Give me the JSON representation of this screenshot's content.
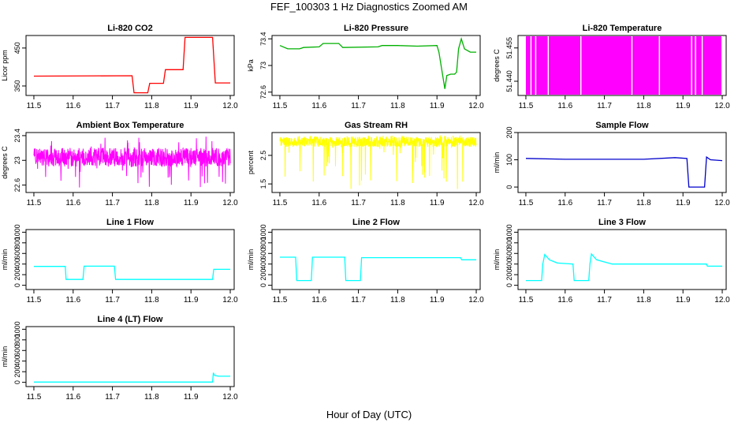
{
  "figure": {
    "title": "FEF_100303  1 Hz Diagnostics Zoomed AM",
    "xlabel": "Hour of Day (UTC)"
  },
  "chart_data": [
    {
      "type": "line",
      "title": "Li-820 CO2",
      "ylabel": "Licor ppm",
      "color": "#ff0000",
      "xlim": [
        11.48,
        12.01
      ],
      "ylim": [
        325,
        483
      ],
      "yticks": [
        350,
        450
      ],
      "xticks": [
        11.5,
        11.6,
        11.7,
        11.8,
        11.9,
        12.0
      ],
      "series": [
        {
          "x": [
            11.5,
            11.75,
            11.755,
            11.79,
            11.795,
            11.83,
            11.835,
            11.88,
            11.885,
            11.955,
            11.962,
            12.0
          ],
          "y": [
            376,
            377,
            332,
            332,
            357,
            357,
            393,
            393,
            478,
            478,
            358,
            358
          ]
        }
      ]
    },
    {
      "type": "line",
      "title": "Li-820 Pressure",
      "ylabel": "kPa",
      "color": "#00b000",
      "xlim": [
        11.48,
        12.01
      ],
      "ylim": [
        72.55,
        73.45
      ],
      "yticks": [
        72.6,
        73.0,
        73.4
      ],
      "xticks": [
        11.5,
        11.6,
        11.7,
        11.8,
        11.9,
        12.0
      ],
      "series": [
        {
          "x": [
            11.5,
            11.52,
            11.55,
            11.56,
            11.6,
            11.61,
            11.65,
            11.66,
            11.75,
            11.76,
            11.8,
            11.85,
            11.9,
            11.905,
            11.92,
            11.925,
            11.935,
            11.945,
            11.95,
            11.955,
            11.962,
            11.97,
            11.985,
            12.0
          ],
          "y": [
            73.3,
            73.25,
            73.25,
            73.27,
            73.28,
            73.33,
            73.33,
            73.27,
            73.28,
            73.3,
            73.3,
            73.29,
            73.3,
            73.2,
            72.65,
            72.85,
            72.87,
            72.87,
            72.9,
            73.25,
            73.4,
            73.25,
            73.2,
            73.2
          ]
        }
      ]
    },
    {
      "type": "area",
      "title": "Li-820 Temperature",
      "ylabel": "degrees C",
      "color": "#ff00ff",
      "xlim": [
        11.48,
        12.01
      ],
      "ylim": [
        51.4336,
        51.4606
      ],
      "yticks": [
        51.44,
        51.455
      ],
      "ytick_labels": [
        "51.440",
        "51.455"
      ],
      "xticks": [
        11.5,
        11.6,
        11.7,
        11.8,
        11.9,
        12.0
      ],
      "band": [
        11.5,
        11.998
      ],
      "gaps": [
        11.513,
        11.525,
        11.557,
        11.64,
        11.77,
        11.84,
        11.922,
        11.932,
        11.949
      ]
    },
    {
      "type": "line",
      "title": "Ambient Box Temperature",
      "ylabel": "degrees C",
      "color": "#ff00ff",
      "xlim": [
        11.48,
        12.01
      ],
      "ylim": [
        22.48,
        23.45
      ],
      "yticks": [
        22.6,
        23.0,
        23.4
      ],
      "xticks": [
        11.5,
        11.6,
        11.7,
        11.8,
        11.9,
        12.0
      ],
      "noise": {
        "base": 23.05,
        "low": 22.9,
        "high": 23.2,
        "min": 22.55,
        "max": 23.4
      }
    },
    {
      "type": "line",
      "title": "Gas Stream RH",
      "ylabel": "percent",
      "color": "#ffff00",
      "xlim": [
        11.48,
        12.01
      ],
      "ylim": [
        1.2,
        3.3
      ],
      "yticks": [
        1.5,
        2.5
      ],
      "xticks": [
        11.5,
        11.6,
        11.7,
        11.8,
        11.9,
        12.0
      ],
      "noise": {
        "base": 3.0,
        "low": 2.8,
        "high": 3.15,
        "min": 1.3,
        "max": 3.2
      }
    },
    {
      "type": "line",
      "title": "Sample Flow",
      "ylabel": "ml/min",
      "color": "#0000cc",
      "xlim": [
        11.48,
        12.01
      ],
      "ylim": [
        -20,
        200
      ],
      "yticks": [
        0,
        100,
        200
      ],
      "xticks": [
        11.5,
        11.6,
        11.7,
        11.8,
        11.9,
        12.0
      ],
      "series": [
        {
          "x": [
            11.5,
            11.6,
            11.7,
            11.8,
            11.88,
            11.91,
            11.915,
            11.955,
            11.96,
            11.97,
            12.0
          ],
          "y": [
            105,
            102,
            102,
            102,
            108,
            105,
            0,
            0,
            110,
            100,
            97
          ]
        }
      ]
    },
    {
      "type": "line",
      "title": "Line 1 Flow",
      "ylabel": "ml/min",
      "color": "#00ffff",
      "xlim": [
        11.48,
        12.01
      ],
      "ylim": [
        -80,
        1050
      ],
      "yticks": [
        0,
        200,
        400,
        600,
        800,
        1000
      ],
      "xticks": [
        11.5,
        11.6,
        11.7,
        11.8,
        11.9,
        12.0
      ],
      "series": [
        {
          "x": [
            11.5,
            11.58,
            11.582,
            11.625,
            11.628,
            11.705,
            11.708,
            11.955,
            11.958,
            12.0
          ],
          "y": [
            355,
            355,
            110,
            110,
            360,
            360,
            110,
            110,
            300,
            300
          ]
        }
      ]
    },
    {
      "type": "line",
      "title": "Line 2 Flow",
      "ylabel": "ml/min",
      "color": "#00ffff",
      "xlim": [
        11.48,
        12.01
      ],
      "ylim": [
        -80,
        1050
      ],
      "yticks": [
        0,
        200,
        400,
        600,
        800,
        1000
      ],
      "xticks": [
        11.5,
        11.6,
        11.7,
        11.8,
        11.9,
        12.0
      ],
      "series": [
        {
          "x": [
            11.5,
            11.54,
            11.543,
            11.58,
            11.583,
            11.665,
            11.668,
            11.705,
            11.708,
            11.96,
            11.963,
            12.0
          ],
          "y": [
            530,
            530,
            90,
            90,
            530,
            530,
            90,
            90,
            520,
            520,
            480,
            480
          ]
        }
      ]
    },
    {
      "type": "line",
      "title": "Line 3 Flow",
      "ylabel": "ml/min",
      "color": "#00ffff",
      "xlim": [
        11.48,
        12.01
      ],
      "ylim": [
        -80,
        1050
      ],
      "yticks": [
        0,
        200,
        400,
        600,
        800,
        1000
      ],
      "xticks": [
        11.5,
        11.6,
        11.7,
        11.8,
        11.9,
        12.0
      ],
      "series": [
        {
          "x": [
            11.5,
            11.54,
            11.543,
            11.548,
            11.56,
            11.58,
            11.62,
            11.623,
            11.66,
            11.663,
            11.667,
            11.68,
            11.72,
            11.96,
            11.962,
            12.0
          ],
          "y": [
            90,
            90,
            400,
            580,
            480,
            420,
            400,
            90,
            90,
            400,
            590,
            480,
            400,
            400,
            360,
            360
          ]
        }
      ]
    },
    {
      "type": "line",
      "title": "Line 4 (LT) Flow",
      "ylabel": "ml/min",
      "color": "#00ffff",
      "xlim": [
        11.48,
        12.01
      ],
      "ylim": [
        -80,
        1050
      ],
      "yticks": [
        0,
        200,
        400,
        600,
        800,
        1000
      ],
      "xticks": [
        11.5,
        11.6,
        11.7,
        11.8,
        11.9,
        12.0
      ],
      "series": [
        {
          "x": [
            11.5,
            11.955,
            11.957,
            11.96,
            11.97,
            12.0
          ],
          "y": [
            5,
            5,
            180,
            130,
            115,
            115
          ]
        }
      ]
    }
  ]
}
